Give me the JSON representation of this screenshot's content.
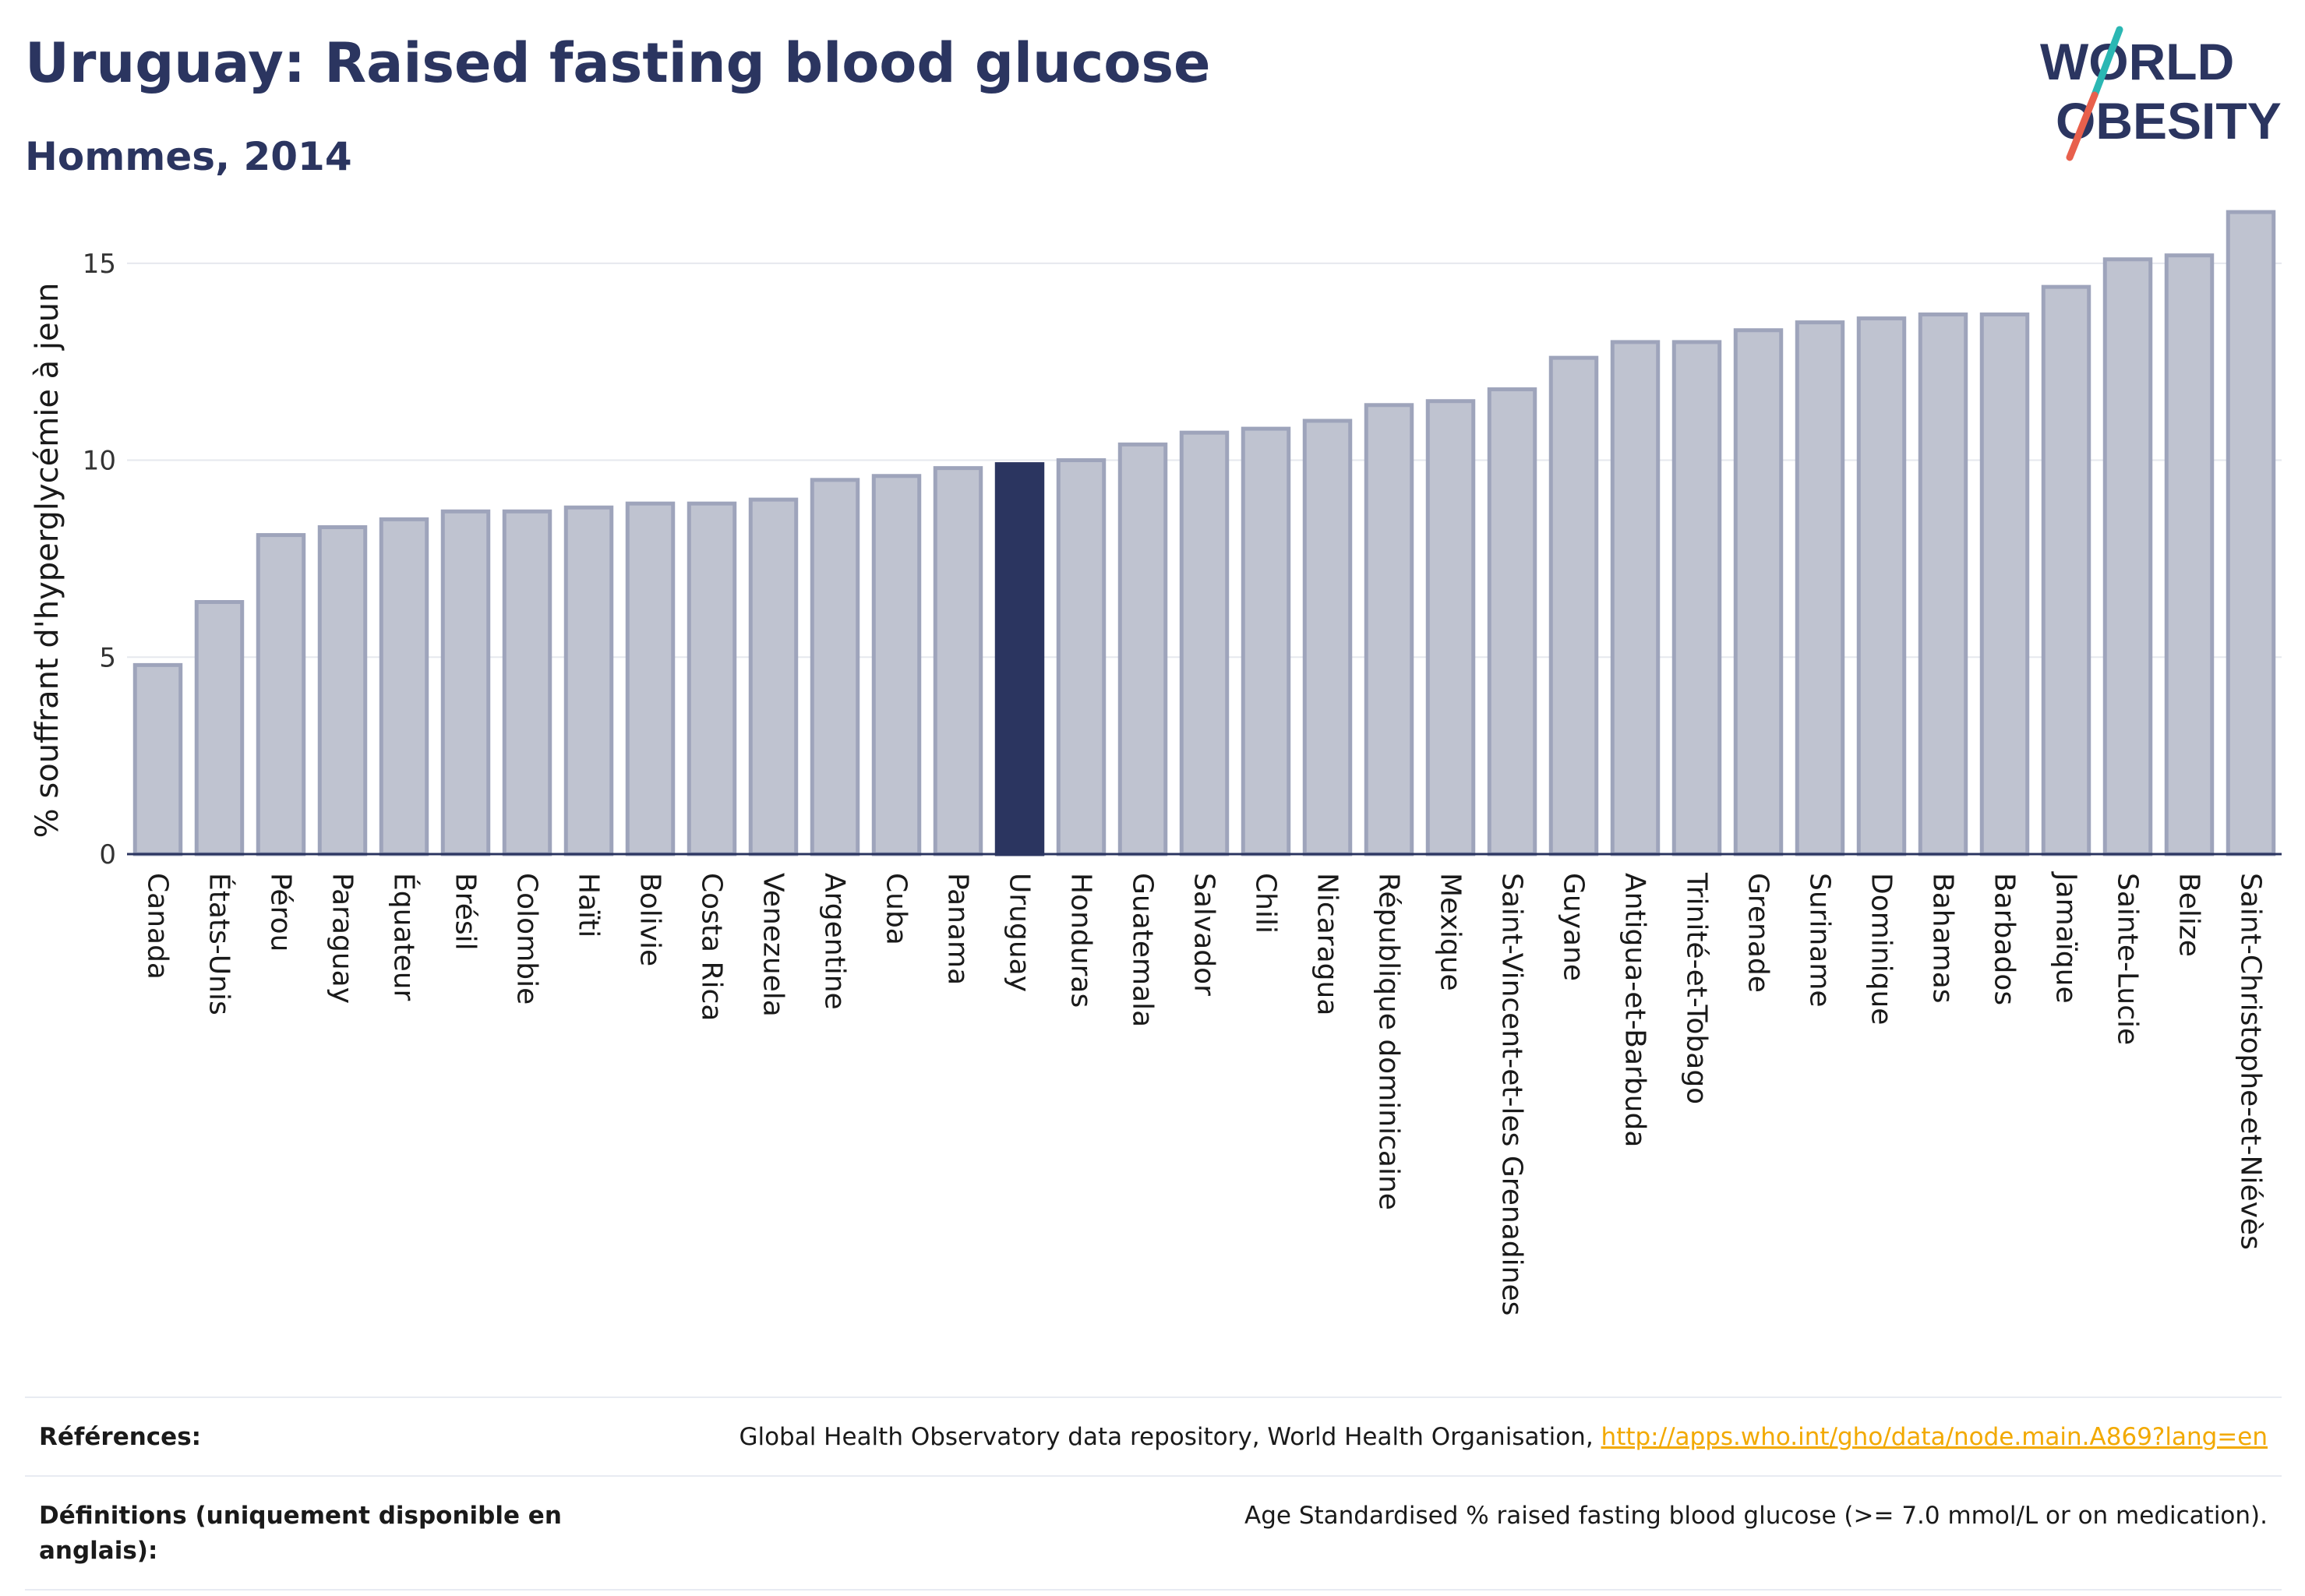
{
  "header": {
    "title": "Uruguay: Raised fasting blood glucose",
    "subtitle": "Hommes, 2014"
  },
  "logo": {
    "line1": "WORLD",
    "line2": "OBESITY",
    "colors": {
      "text": "#2b3560",
      "slash_top": "#2bb7b3",
      "slash_bottom": "#e8604c"
    }
  },
  "colors": {
    "bar_fill": "#bfc3d0",
    "bar_stroke": "#9ea4bb",
    "highlight": "#2b3560",
    "grid": "#e6e8ee",
    "axis": "#2b3560"
  },
  "chart_data": {
    "type": "bar",
    "title": "",
    "xlabel": "",
    "ylabel": "% souffrant d'hyperglycémie à jeun",
    "ylim": [
      0,
      16.5
    ],
    "yticks": [
      0,
      5,
      10,
      15
    ],
    "grid": true,
    "highlight": "Uruguay",
    "categories": [
      "Canada",
      "États-Unis",
      "Pérou",
      "Paraguay",
      "Équateur",
      "Brésil",
      "Colombie",
      "Haïti",
      "Bolivie",
      "Costa Rica",
      "Venezuela",
      "Argentine",
      "Cuba",
      "Panama",
      "Uruguay",
      "Honduras",
      "Guatemala",
      "Salvador",
      "Chili",
      "Nicaragua",
      "République dominicaine",
      "Mexique",
      "Saint-Vincent-et-les Grenadines",
      "Guyane",
      "Antigua-et-Barbuda",
      "Trinité-et-Tobago",
      "Grenade",
      "Suriname",
      "Dominique",
      "Bahamas",
      "Barbados",
      "Jamaïque",
      "Sainte-Lucie",
      "Belize",
      "Saint-Christophe-et-Niévès"
    ],
    "values": [
      4.8,
      6.4,
      8.1,
      8.3,
      8.5,
      8.7,
      8.7,
      8.8,
      8.9,
      8.9,
      9.0,
      9.5,
      9.6,
      9.8,
      9.9,
      10.0,
      10.4,
      10.7,
      10.8,
      11.0,
      11.4,
      11.5,
      11.8,
      12.6,
      13.0,
      13.0,
      13.3,
      13.5,
      13.6,
      13.7,
      13.7,
      14.4,
      15.1,
      15.2,
      16.3
    ]
  },
  "references": {
    "label": "Références:",
    "text": "Global Health Observatory data repository, World Health Organisation,",
    "link": "http://apps.who.int/gho/data/node.main.A869?lang=en"
  },
  "definitions": {
    "label": "Définitions (uniquement disponible en anglais):",
    "text": "Age Standardised % raised fasting blood glucose (>= 7.0 mmol/L or on medication)."
  }
}
